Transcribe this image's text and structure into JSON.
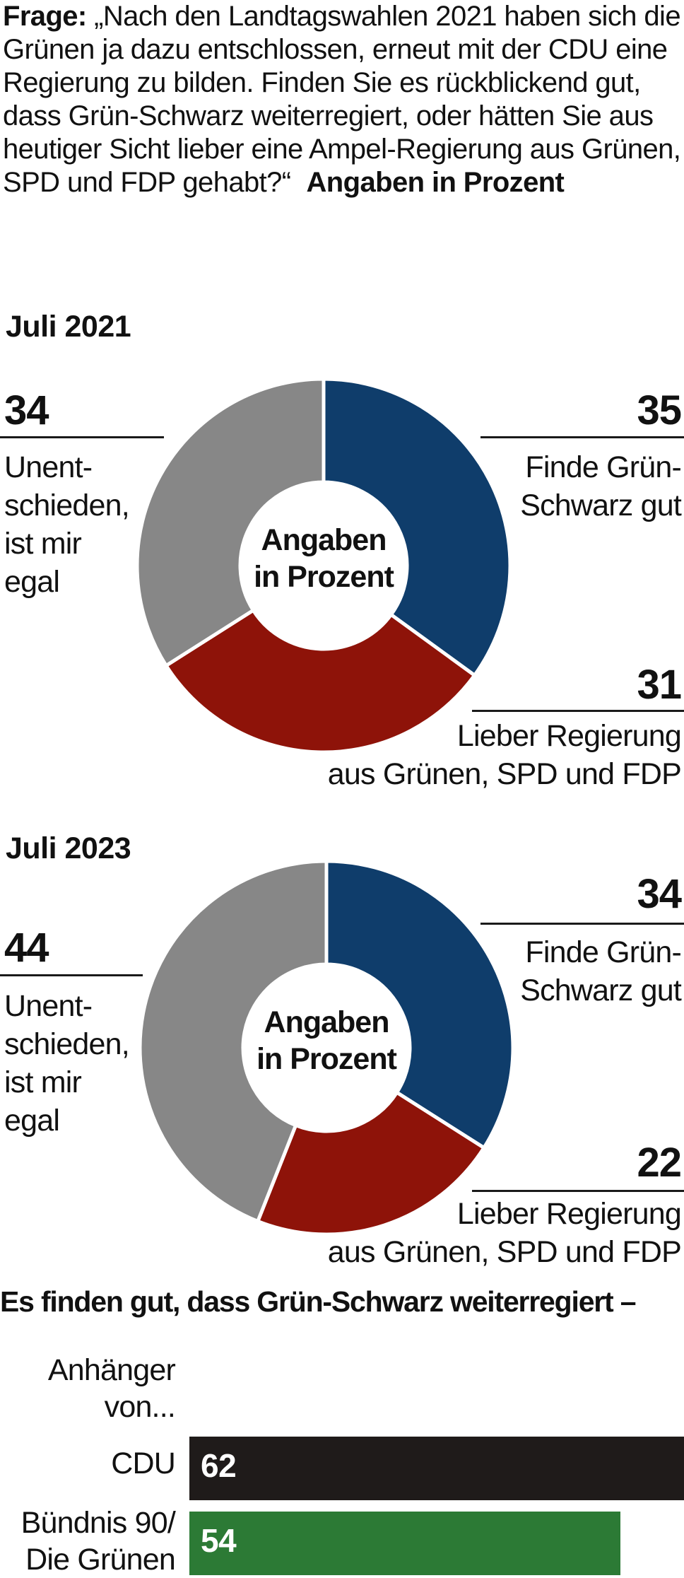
{
  "question": {
    "label": "Frage:",
    "text": " „Nach den Landtagswahlen 2021 haben sich die Grünen ja dazu entschlossen, erneut mit der CDU eine Regierung zu bilden. Finden Sie es rückblickend gut, dass Grün-Schwarz weiter­regiert, oder hätten Sie aus heutiger Sicht lieber eine Ampel-Regierung aus Grünen, SPD und FDP gehabt?“",
    "unit": "Angaben in Prozent"
  },
  "colors": {
    "gruen_schwarz": "#0f3d6b",
    "ampel": "#8e1309",
    "unentschieden": "#878787",
    "cdu_bar": "#1f1b1a",
    "gruene_bar": "#2c7a35"
  },
  "chart_data": [
    {
      "type": "pie",
      "title": "Juli 2021",
      "center_label": [
        "Angaben",
        "in Prozent"
      ],
      "slices": [
        {
          "label": "Finde Grün-Schwarz gut",
          "value": 35,
          "color": "#0f3d6b"
        },
        {
          "label": "Lieber Regierung aus Grünen, SPD und FDP",
          "value": 31,
          "color": "#8e1309"
        },
        {
          "label": "Unentschieden, ist mir egal",
          "value": 34,
          "color": "#878787"
        }
      ]
    },
    {
      "type": "pie",
      "title": "Juli 2023",
      "center_label": [
        "Angaben",
        "in Prozent"
      ],
      "slices": [
        {
          "label": "Finde Grün-Schwarz gut",
          "value": 34,
          "color": "#0f3d6b"
        },
        {
          "label": "Lieber Regierung aus Grünen, SPD und FDP",
          "value": 22,
          "color": "#8e1309"
        },
        {
          "label": "Unentschieden, ist mir egal",
          "value": 44,
          "color": "#878787"
        }
      ]
    },
    {
      "type": "bar",
      "title": "Es finden gut, dass Grün-Schwarz weiterregiert –",
      "axis_label": "Anhänger von...",
      "categories": [
        "CDU",
        "Bündnis 90/ Die Grünen"
      ],
      "values": [
        62,
        54
      ],
      "colors": [
        "#1f1b1a",
        "#2c7a35"
      ],
      "xlim": [
        0,
        62
      ]
    }
  ]
}
